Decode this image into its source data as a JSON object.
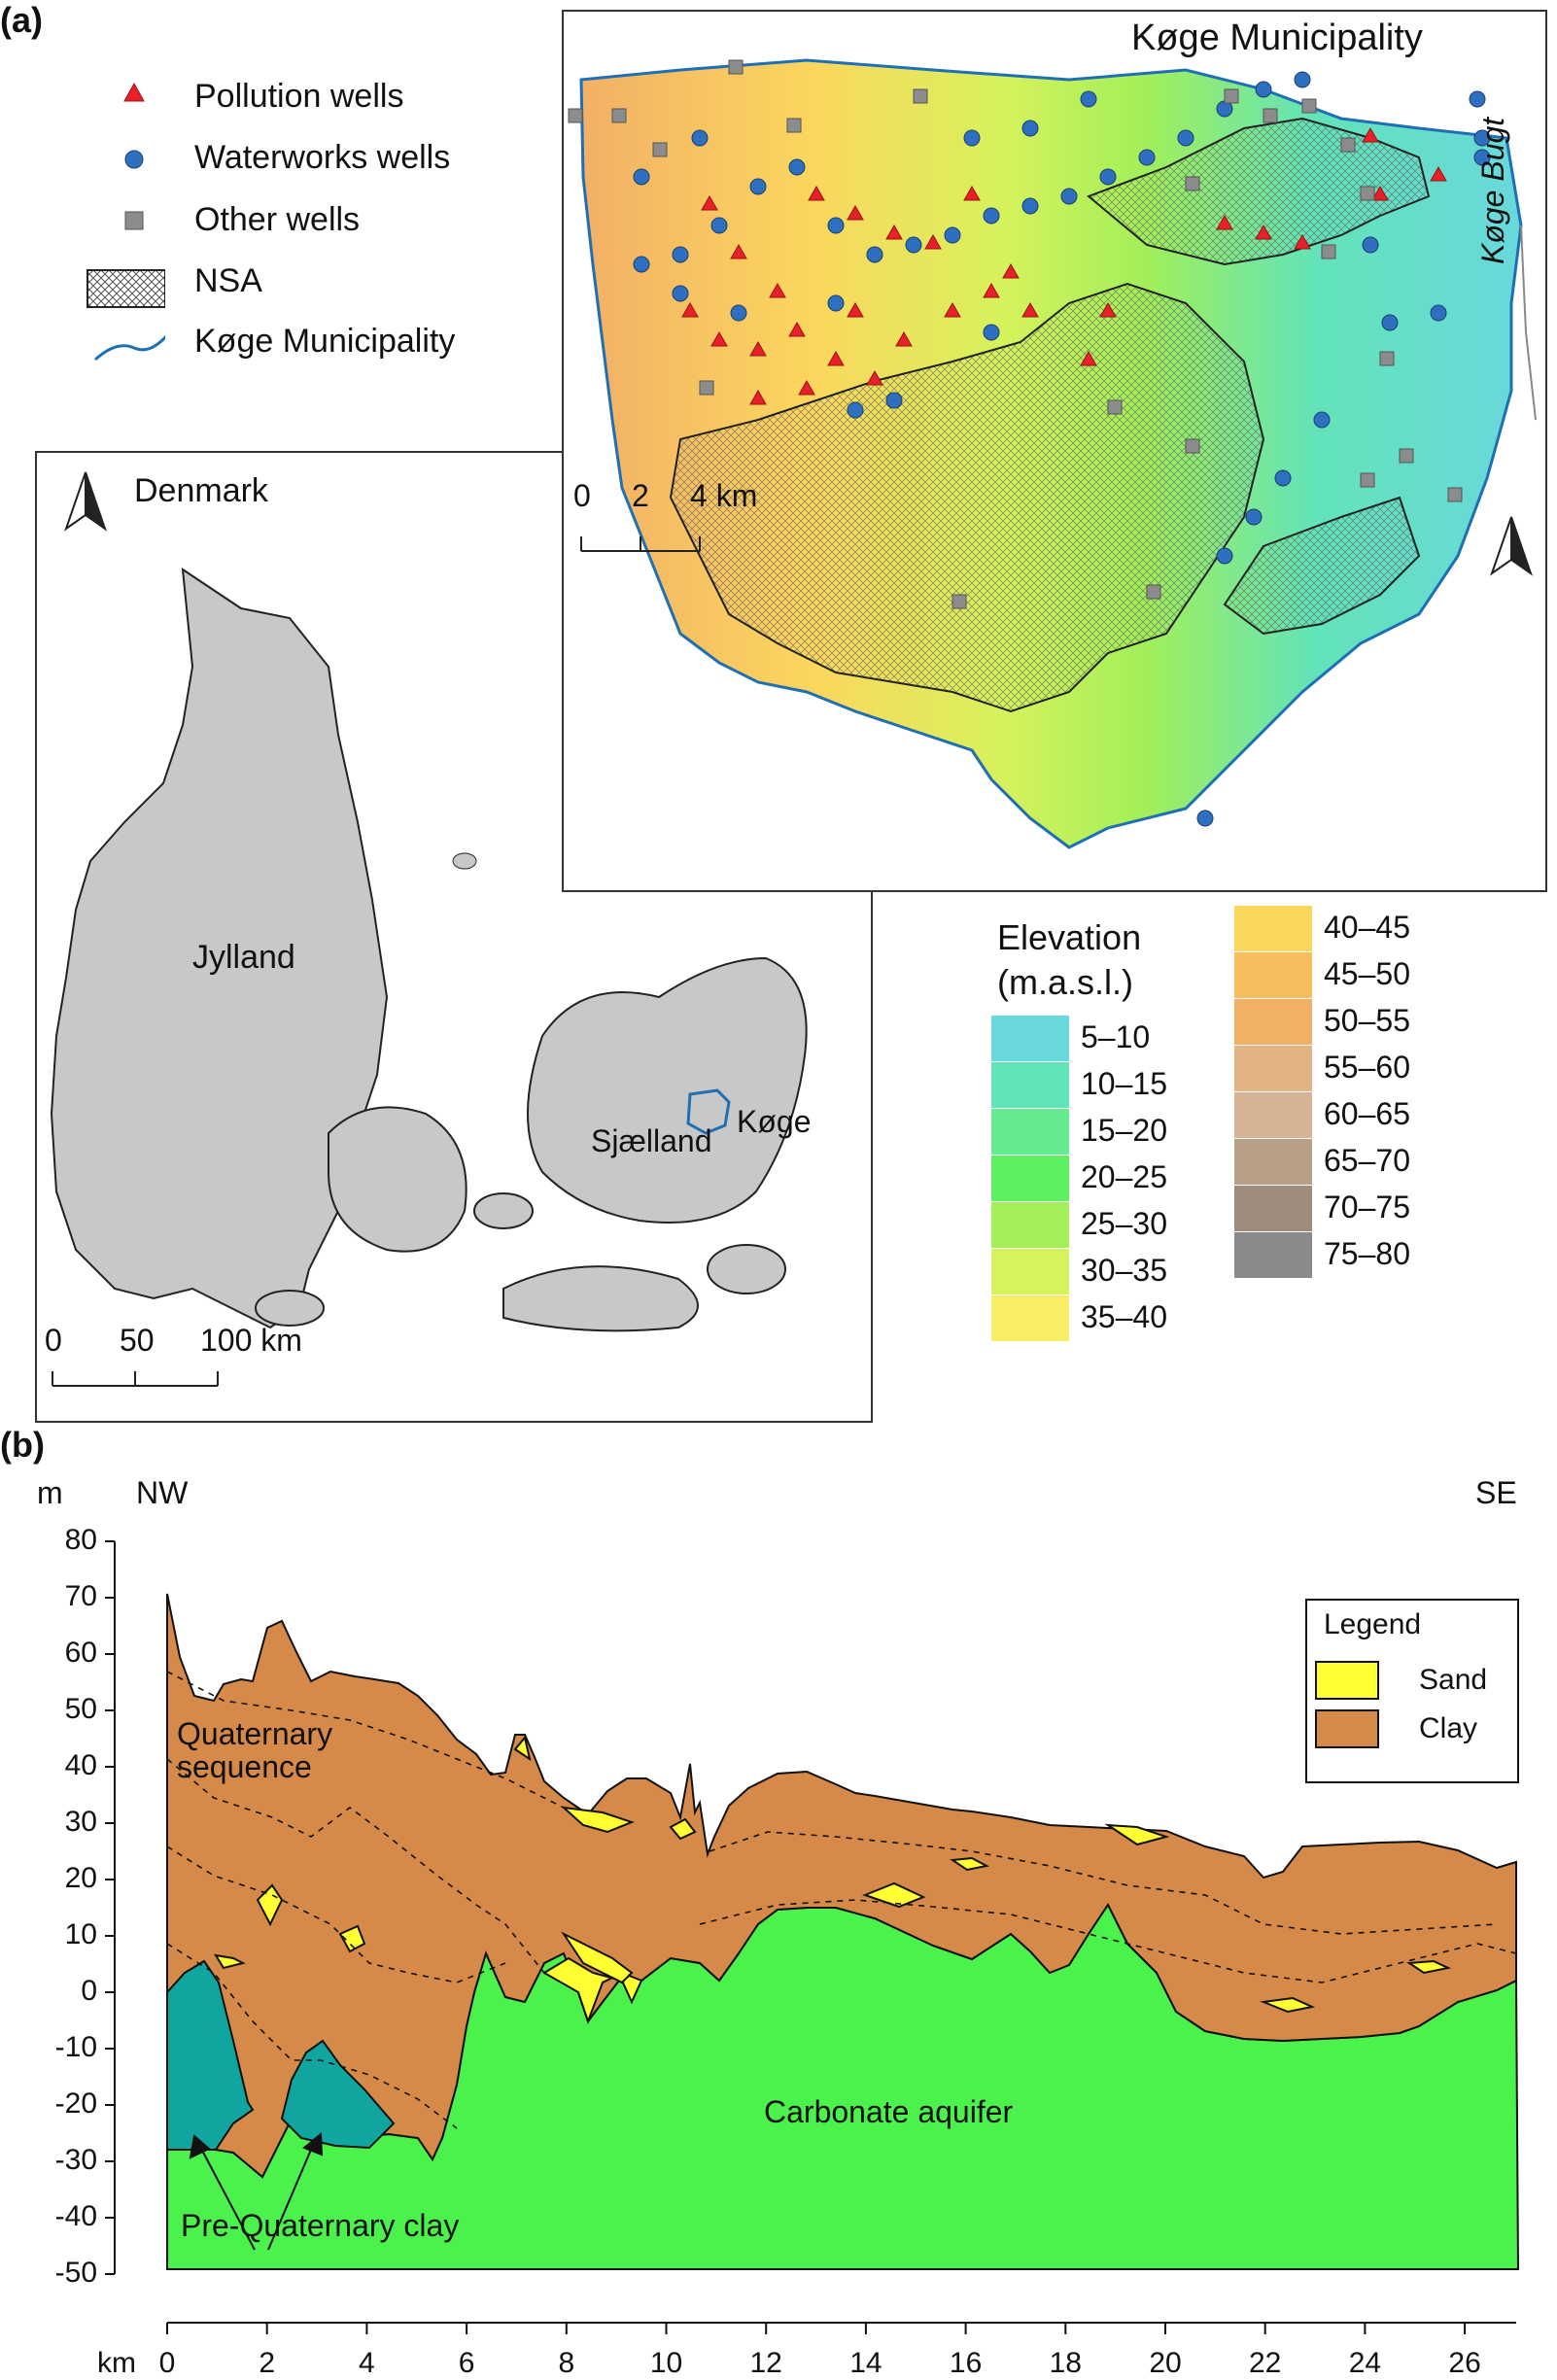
{
  "panel_a": {
    "label": "(a)",
    "legend": {
      "pollution_wells": "Pollution wells",
      "waterworks_wells": "Waterworks wells",
      "other_wells": "Other wells",
      "nsa": "NSA",
      "municipality": "Køge Municipality"
    },
    "denmark": {
      "title": "Denmark",
      "jylland": "Jylland",
      "sjaelland": "Sjælland",
      "koge": "Køge",
      "scale": {
        "tick0": "0",
        "tick1": "50",
        "tick2": "100 km"
      }
    },
    "koge_map": {
      "title": "Køge Municipality",
      "bay": "Køge Bugt",
      "scale": {
        "tick0": "0",
        "tick1": "2",
        "tick2": "4 km"
      }
    },
    "elevation": {
      "title": "Elevation",
      "unit": "(m.a.s.l.)",
      "classes": [
        {
          "label": "5–10",
          "color": "#69d8dc"
        },
        {
          "label": "10–15",
          "color": "#62e3b8"
        },
        {
          "label": "15–20",
          "color": "#66ea8e"
        },
        {
          "label": "20–25",
          "color": "#5ef062"
        },
        {
          "label": "25–30",
          "color": "#a2ef5a"
        },
        {
          "label": "30–35",
          "color": "#d6f25c"
        },
        {
          "label": "35–40",
          "color": "#f8ee63"
        },
        {
          "label": "40–45",
          "color": "#fbd75e"
        },
        {
          "label": "45–50",
          "color": "#f8bd5e"
        },
        {
          "label": "50–55",
          "color": "#f2b066"
        },
        {
          "label": "55–60",
          "color": "#e2b485"
        },
        {
          "label": "60–65",
          "color": "#d5b394"
        },
        {
          "label": "65–70",
          "color": "#b89f88"
        },
        {
          "label": "70–75",
          "color": "#9e8d7c"
        },
        {
          "label": "75–80",
          "color": "#8a8a8a"
        }
      ]
    }
  },
  "panel_b": {
    "label": "(b)",
    "y_unit": "m",
    "nw": "NW",
    "se": "SE",
    "x_unit": "km",
    "y_ticks": [
      "80",
      "70",
      "60",
      "50",
      "40",
      "30",
      "20",
      "10",
      "0",
      "-10",
      "-20",
      "-30",
      "-40",
      "-50"
    ],
    "x_ticks": [
      "0",
      "2",
      "4",
      "6",
      "8",
      "10",
      "12",
      "14",
      "16",
      "18",
      "20",
      "22",
      "24",
      "26"
    ],
    "labels": {
      "quaternary_1": "Quaternary",
      "quaternary_2": "sequence",
      "carbonate": "Carbonate aquifer",
      "pre_quaternary": "Pre-Quaternary clay"
    },
    "legend": {
      "title": "Legend",
      "sand": "Sand",
      "clay": "Clay"
    },
    "colors": {
      "sand": "#ffff33",
      "clay": "#d68a4a",
      "carbonate": "#4cf24c",
      "pre_quaternary": "#11a5a0"
    }
  }
}
